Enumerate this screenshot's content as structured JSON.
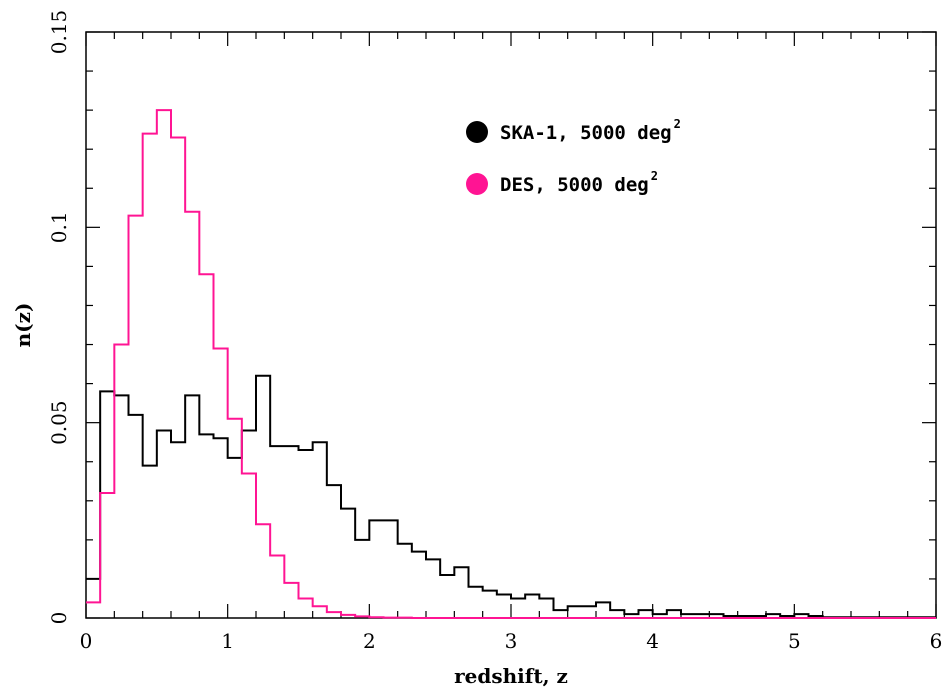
{
  "chart_data": {
    "type": "line",
    "step": true,
    "xlabel": "redshift, z",
    "ylabel": "n(z)",
    "xlim": [
      0,
      6
    ],
    "ylim": [
      0,
      0.15
    ],
    "xticks": [
      0,
      1,
      2,
      3,
      4,
      5,
      6
    ],
    "xtick_labels": [
      "0",
      "1",
      "2",
      "3",
      "4",
      "5",
      "6"
    ],
    "yticks": [
      0,
      0.05,
      0.1,
      0.15
    ],
    "ytick_labels": [
      "0",
      "0.05",
      "0.1",
      "0.15"
    ],
    "grid": false,
    "legend_position": "top-right",
    "bin_edges": [
      0,
      0.1,
      0.2,
      0.3,
      0.4,
      0.5,
      0.6,
      0.7,
      0.8,
      0.9,
      1.0,
      1.1,
      1.2,
      1.3,
      1.4,
      1.5,
      1.6,
      1.7,
      1.8,
      1.9,
      2.0,
      2.1,
      2.2,
      2.3,
      2.4,
      2.5,
      2.6,
      2.7,
      2.8,
      2.9,
      3.0,
      3.1,
      3.2,
      3.3,
      3.4,
      3.5,
      3.6,
      3.7,
      3.8,
      3.9,
      4.0,
      4.1,
      4.2,
      4.3,
      4.4,
      4.5,
      4.6,
      4.7,
      4.8,
      4.9,
      5.0,
      5.1,
      5.2,
      5.3,
      5.4,
      5.5,
      5.6,
      5.7,
      5.8,
      5.9,
      6.0
    ],
    "series": [
      {
        "name": "SKA-1, 5000 deg",
        "name_sup": "2",
        "color": "#000000",
        "values": [
          0.01,
          0.058,
          0.057,
          0.052,
          0.039,
          0.048,
          0.045,
          0.057,
          0.047,
          0.046,
          0.041,
          0.048,
          0.062,
          0.044,
          0.044,
          0.043,
          0.045,
          0.034,
          0.028,
          0.02,
          0.025,
          0.025,
          0.019,
          0.017,
          0.015,
          0.011,
          0.013,
          0.008,
          0.007,
          0.006,
          0.005,
          0.006,
          0.005,
          0.002,
          0.003,
          0.003,
          0.004,
          0.002,
          0.001,
          0.002,
          0.001,
          0.002,
          0.001,
          0.001,
          0.001,
          0.0005,
          0.0005,
          0.0005,
          0.001,
          0.0005,
          0.001,
          0.0005,
          0.0002,
          0.0002,
          0.0002,
          0.0002,
          0.0002,
          0.0002,
          0.0002,
          0.0002
        ]
      },
      {
        "name": "DES, 5000 deg",
        "name_sup": "2",
        "color": "#ff1493",
        "values": [
          0.004,
          0.032,
          0.07,
          0.103,
          0.124,
          0.13,
          0.123,
          0.104,
          0.088,
          0.069,
          0.051,
          0.037,
          0.024,
          0.016,
          0.009,
          0.005,
          0.003,
          0.0015,
          0.0008,
          0.0004,
          0.0002,
          0.0001,
          0.0001,
          0,
          0,
          0,
          0,
          0,
          0,
          0,
          0,
          0,
          0,
          0,
          0,
          0,
          0,
          0,
          0,
          0,
          0,
          0,
          0,
          0,
          0,
          0,
          0,
          0,
          0,
          0,
          0,
          0,
          0,
          0,
          0,
          0,
          0,
          0,
          0,
          0
        ]
      }
    ]
  }
}
